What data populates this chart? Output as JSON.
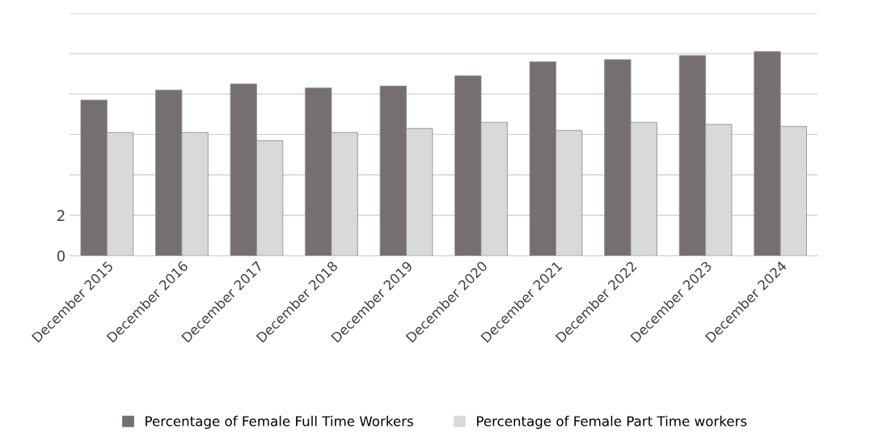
{
  "chart_data": {
    "type": "bar",
    "categories": [
      "December 2015",
      "December 2016",
      "December 2017",
      "December 2018",
      "December 2019",
      "December 2020",
      "December 2021",
      "December 2022",
      "December 2023",
      "December 2024"
    ],
    "series": [
      {
        "name": "Percentage of Female Full Time Workers",
        "color": "#75706f",
        "values": [
          7.7,
          8.2,
          8.5,
          8.3,
          8.4,
          8.9,
          9.6,
          9.7,
          9.9,
          10.1
        ]
      },
      {
        "name": "Percentage of Female Part Time workers",
        "color": "#d9d9d9",
        "values": [
          6.1,
          6.1,
          5.7,
          6.1,
          6.3,
          6.6,
          6.2,
          6.6,
          6.5,
          6.4
        ]
      }
    ],
    "ylim": [
      0,
      12
    ],
    "yticks": [
      0,
      2,
      {
        "value": 4,
        "label": null
      },
      {
        "value": 6,
        "label": null
      },
      {
        "value": 8,
        "label": null
      },
      {
        "value": 10,
        "label": null
      },
      {
        "value": 12,
        "label": null
      }
    ],
    "grid": "y",
    "legend": "bottom"
  }
}
